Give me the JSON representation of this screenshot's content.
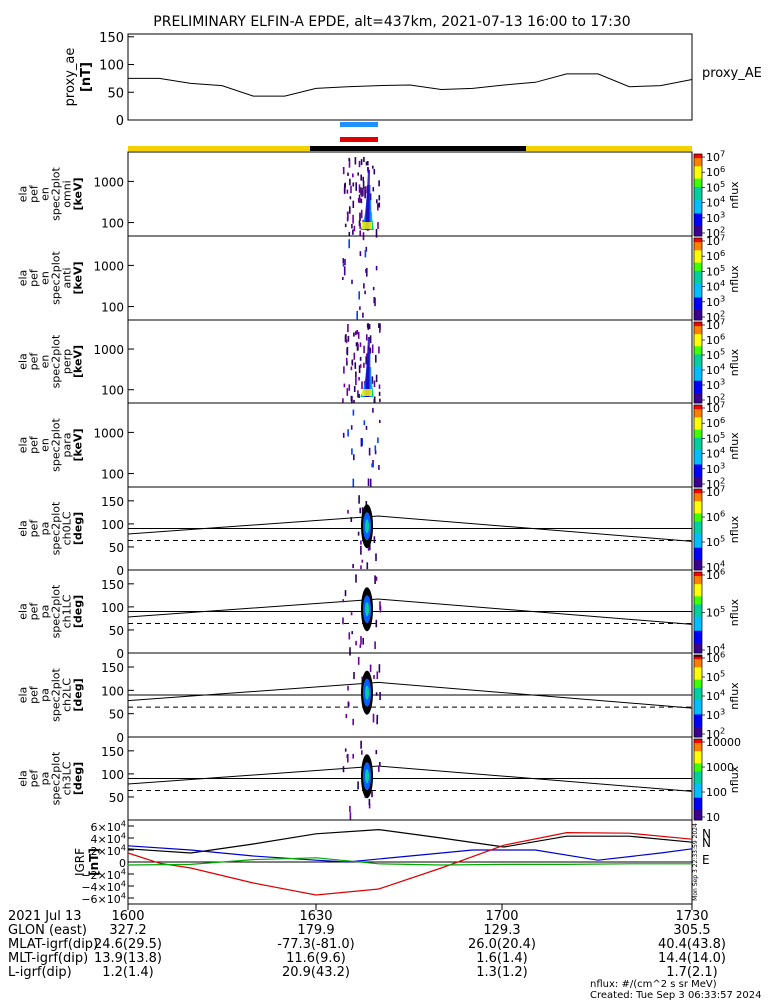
{
  "title": "PRELIMINARY ELFIN-A EPDE, alt=437km, 2021-07-13 16:00 to 17:30",
  "colors": {
    "science_zone_bar": "#f5d000",
    "science_bar_black": "#000000",
    "mark_blue": "#1e90ff",
    "mark_red": "#e00000",
    "bfield_x": "#000000",
    "bfield_y": "#0000cc",
    "bfield_z": "#dd0000",
    "bfield_e": "#00aa00"
  },
  "chart_data": [
    {
      "type": "line",
      "name": "proxy_ae",
      "ylabel": [
        "proxy_ae",
        "[nT]"
      ],
      "right_label": "proxy_AE",
      "ylim": [
        0,
        155
      ],
      "yticks": [
        "150",
        "100",
        "50",
        "0"
      ],
      "ytick_values": [
        150,
        100,
        50,
        0
      ],
      "x": [
        0,
        5,
        10,
        15,
        20,
        25,
        30,
        35,
        40,
        45,
        50,
        55,
        60,
        65,
        70,
        75,
        80,
        85,
        90
      ],
      "values": [
        75,
        75,
        66,
        62,
        43,
        43,
        57,
        60,
        62,
        63,
        55,
        57,
        63,
        68,
        83,
        83,
        60,
        62,
        73
      ]
    },
    {
      "type": "heatmap",
      "name": "ela_pef_en_spec2plot_omni",
      "ylabel": [
        "ela",
        "pef",
        "en",
        "spec2plot",
        "omni",
        "[keV]"
      ],
      "scale": "log",
      "yticks": [
        "1000",
        "100"
      ],
      "colorbar": {
        "label": "nflux",
        "ticks": [
          "10^7",
          "10^6",
          "10^5",
          "10^4",
          "10^3",
          "10^2"
        ]
      },
      "events": [
        {
          "time_min": 38,
          "energy_keV": 100,
          "log_flux": 3.8
        },
        {
          "time_min": 39,
          "energy_keV": 200,
          "log_flux": 4.2
        },
        {
          "time_min": 40,
          "energy_keV": 500,
          "log_flux": 3.2
        },
        {
          "time_min": 41,
          "energy_keV": 300,
          "log_flux": 2.8
        },
        {
          "time_min": 37,
          "energy_keV": 1500,
          "log_flux": 2.3
        }
      ]
    },
    {
      "type": "heatmap",
      "name": "ela_pef_en_spec2plot_anti",
      "ylabel": [
        "ela",
        "pef",
        "en",
        "spec2plot",
        "anti",
        "[keV]"
      ],
      "scale": "log",
      "yticks": [
        "1000",
        "100"
      ],
      "colorbar": {
        "label": "nflux",
        "ticks": [
          "10^7",
          "10^6",
          "10^5",
          "10^4",
          "10^3",
          "10^2"
        ]
      },
      "events": [
        {
          "time_min": 38,
          "energy_keV": 100,
          "log_flux": 2.8
        },
        {
          "time_min": 38,
          "energy_keV": 150,
          "log_flux": 2.4
        }
      ]
    },
    {
      "type": "heatmap",
      "name": "ela_pef_en_spec2plot_perp",
      "ylabel": [
        "ela",
        "pef",
        "en",
        "spec2plot",
        "perp",
        "[keV]"
      ],
      "scale": "log",
      "yticks": [
        "1000",
        "100"
      ],
      "colorbar": {
        "label": "nflux",
        "ticks": [
          "10^7",
          "10^6",
          "10^5",
          "10^4",
          "10^3",
          "10^2"
        ]
      },
      "events": [
        {
          "time_min": 38,
          "energy_keV": 100,
          "log_flux": 3.9
        },
        {
          "time_min": 39,
          "energy_keV": 250,
          "log_flux": 4.1
        },
        {
          "time_min": 40,
          "energy_keV": 600,
          "log_flux": 3.3
        }
      ]
    },
    {
      "type": "heatmap",
      "name": "ela_pef_en_spec2plot_para",
      "ylabel": [
        "ela",
        "pef",
        "en",
        "spec2plot",
        "para",
        "[keV]"
      ],
      "scale": "log",
      "yticks": [
        "1000",
        "100"
      ],
      "colorbar": {
        "label": "nflux",
        "ticks": [
          "10^7",
          "10^6",
          "10^5",
          "10^4",
          "10^3",
          "10^2"
        ]
      },
      "events": [
        {
          "time_min": 38,
          "energy_keV": 100,
          "log_flux": 2.9
        }
      ]
    },
    {
      "type": "heatmap",
      "name": "ela_pef_pa_spec2plot_ch0LC",
      "ylabel": [
        "ela",
        "pef",
        "pa",
        "spec2plot",
        "ch0LC",
        "[deg]"
      ],
      "ylim": [
        0,
        180
      ],
      "yticks": [
        "150",
        "100",
        "50",
        "0"
      ],
      "ytick_values": [
        150,
        100,
        50,
        0
      ],
      "colorbar": {
        "label": "nflux",
        "ticks": [
          "10^7",
          "10^6",
          "10^5",
          "10^4"
        ]
      },
      "loss_cone_deg_start": 78,
      "loss_cone_deg_peak": 117,
      "loss_cone_deg_end": 62,
      "anti_loss_cone_deg": 64
    },
    {
      "type": "heatmap",
      "name": "ela_pef_pa_spec2plot_ch1LC",
      "ylabel": [
        "ela",
        "pef",
        "pa",
        "spec2plot",
        "ch1LC",
        "[deg]"
      ],
      "ylim": [
        0,
        180
      ],
      "yticks": [
        "150",
        "100",
        "50",
        "0"
      ],
      "ytick_values": [
        150,
        100,
        50,
        0
      ],
      "colorbar": {
        "label": "nflux",
        "ticks": [
          "10^6",
          "10^5",
          "10^4"
        ]
      },
      "loss_cone_deg_start": 78,
      "loss_cone_deg_peak": 117,
      "loss_cone_deg_end": 62,
      "anti_loss_cone_deg": 64
    },
    {
      "type": "heatmap",
      "name": "ela_pef_pa_spec2plot_ch2LC",
      "ylabel": [
        "ela",
        "pef",
        "pa",
        "spec2plot",
        "ch2LC",
        "[deg]"
      ],
      "ylim": [
        0,
        180
      ],
      "yticks": [
        "150",
        "100",
        "50",
        "0"
      ],
      "ytick_values": [
        150,
        100,
        50,
        0
      ],
      "colorbar": {
        "label": "nflux",
        "ticks": [
          "10^6",
          "10^5",
          "10^4",
          "10^3",
          "10^2"
        ]
      },
      "loss_cone_deg_start": 78,
      "loss_cone_deg_peak": 117,
      "loss_cone_deg_end": 62,
      "anti_loss_cone_deg": 64
    },
    {
      "type": "heatmap",
      "name": "ela_pef_pa_spec2plot_ch3LC",
      "ylabel": [
        "ela",
        "pef",
        "pa",
        "spec2plot",
        "ch3LC",
        "[deg]"
      ],
      "ylim": [
        0,
        180
      ],
      "yticks": [
        "150",
        "100",
        "50"
      ],
      "ytick_values": [
        150,
        100,
        50
      ],
      "colorbar": {
        "label": "nflux",
        "ticks": [
          "10000",
          "1000",
          "100",
          "10"
        ]
      },
      "loss_cone_deg_start": 78,
      "loss_cone_deg_peak": 117,
      "loss_cone_deg_end": 62,
      "anti_loss_cone_deg": 64
    },
    {
      "type": "line",
      "name": "bfield_igrf",
      "ylabel": [
        "IGRF",
        "[nT]"
      ],
      "ylim": [
        -70000,
        70000
      ],
      "yticks": [
        "6×10^4",
        "4×10^4",
        "2×10^4",
        "0",
        "−2×10^4",
        "−4×10^4",
        "−6×10^4"
      ],
      "ytick_values": [
        60000,
        40000,
        20000,
        0,
        -20000,
        -40000,
        -60000
      ],
      "legend": [
        "N",
        "N",
        "E"
      ],
      "series": [
        {
          "id": "black",
          "x": [
            0,
            10,
            20,
            30,
            40,
            50,
            60,
            70,
            80,
            90
          ],
          "values": [
            22000,
            15000,
            30000,
            47000,
            54000,
            40000,
            25000,
            43000,
            43000,
            33000
          ]
        },
        {
          "id": "blue",
          "x": [
            0,
            10,
            20,
            30,
            35,
            45,
            55,
            65,
            75,
            85,
            90
          ],
          "values": [
            27000,
            20000,
            10000,
            3000,
            0,
            10000,
            20000,
            20000,
            3000,
            15000,
            22000
          ]
        },
        {
          "id": "red",
          "x": [
            0,
            5,
            10,
            20,
            30,
            40,
            50,
            60,
            70,
            80,
            90
          ],
          "values": [
            15000,
            -2000,
            -10000,
            -35000,
            -55000,
            -45000,
            -10000,
            28000,
            49000,
            48000,
            38000
          ]
        },
        {
          "id": "green",
          "x": [
            0,
            10,
            20,
            30,
            40,
            50,
            60,
            70,
            80,
            90
          ],
          "values": [
            -5000,
            -4000,
            4000,
            7000,
            -3000,
            -5000,
            -4000,
            -4000,
            -3000,
            -3000
          ]
        }
      ],
      "vertical_caption": "Mon Sep 3 22:33:59 2024"
    }
  ],
  "footer": {
    "date": "2021 Jul 13",
    "times": [
      "1600",
      "1630",
      "1700",
      "1730"
    ],
    "rows": [
      {
        "label": "GLON (east)",
        "values": [
          "327.2",
          "179.9",
          "129.3",
          "305.5"
        ]
      },
      {
        "label": "MLAT-igrf(dip)",
        "values": [
          "24.6(29.5)",
          "-77.3(-81.0)",
          "26.0(20.4)",
          "40.4(43.8)"
        ]
      },
      {
        "label": "MLT-igrf(dip)",
        "values": [
          "13.9(13.8)",
          "11.6(9.6)",
          "1.6(1.4)",
          "14.4(14.0)"
        ]
      },
      {
        "label": "L-igrf(dip)",
        "values": [
          "1.2(1.4)",
          "20.9(43.2)",
          "1.3(1.2)",
          "1.7(2.1)"
        ]
      }
    ],
    "units_note": "nflux: #/(cm^2 s sr MeV)",
    "created": "Created: Tue Sep  3 06:33:57 2024"
  }
}
